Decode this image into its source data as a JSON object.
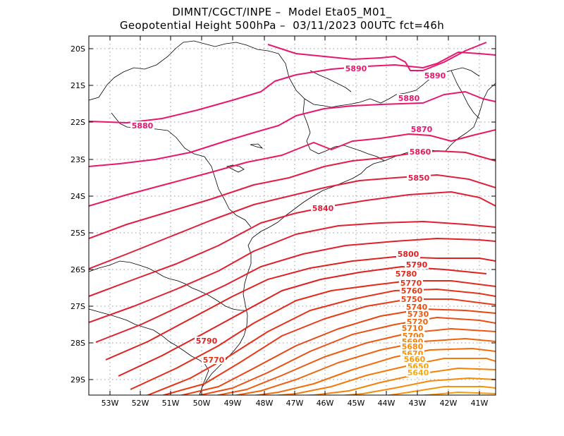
{
  "title": {
    "line1": "DIMNT/CGCT/INPE –  Model Eta05_M01_",
    "line2": "Geopotential Height 500hPa –  03/11/2023 00UTC fct=46h"
  },
  "axes": {
    "lat_labels": [
      "20S",
      "21S",
      "22S",
      "23S",
      "24S",
      "25S",
      "26S",
      "27S",
      "28S",
      "29S"
    ],
    "lon_labels": [
      "53W",
      "52W",
      "51W",
      "50W",
      "49W",
      "48W",
      "47W",
      "46W",
      "45W",
      "44W",
      "43W",
      "42W",
      "41W"
    ]
  },
  "contours": [
    {
      "value": 5890,
      "color": "#e8166e",
      "label": "5890"
    },
    {
      "value": 5880,
      "color": "#e8166e",
      "label": "5880"
    },
    {
      "value": 5870,
      "color": "#e8166e",
      "label": "5870"
    },
    {
      "value": 5860,
      "color": "#e81a58",
      "label": "5860"
    },
    {
      "value": 5850,
      "color": "#e21c45",
      "label": "5850"
    },
    {
      "value": 5840,
      "color": "#e01f3b",
      "label": "5840"
    },
    {
      "value": 5830,
      "color": "#e01f35",
      "label": ""
    },
    {
      "value": 5820,
      "color": "#e01f30",
      "label": ""
    },
    {
      "value": 5810,
      "color": "#e0202a",
      "label": ""
    },
    {
      "value": 5800,
      "color": "#e02020",
      "label": "5800"
    },
    {
      "value": 5790,
      "color": "#e02020",
      "label": "5790"
    },
    {
      "value": 5780,
      "color": "#e42a1a",
      "label": "5780"
    },
    {
      "value": 5770,
      "color": "#e63218",
      "label": "5770"
    },
    {
      "value": 5760,
      "color": "#e83a16",
      "label": "5760"
    },
    {
      "value": 5750,
      "color": "#ea4414",
      "label": "5750"
    },
    {
      "value": 5740,
      "color": "#ec4e12",
      "label": "5740"
    },
    {
      "value": 5730,
      "color": "#ee5810",
      "label": "5730"
    },
    {
      "value": 5720,
      "color": "#f0620e",
      "label": "5720"
    },
    {
      "value": 5710,
      "color": "#f26c0c",
      "label": "5710"
    },
    {
      "value": 5700,
      "color": "#f4780a",
      "label": "5700"
    },
    {
      "value": 5690,
      "color": "#f5800a",
      "label": "5690"
    },
    {
      "value": 5680,
      "color": "#f68a0a",
      "label": "5680"
    },
    {
      "value": 5670,
      "color": "#f7920a",
      "label": "5670"
    },
    {
      "value": 5660,
      "color": "#f89a0a",
      "label": "5660"
    },
    {
      "value": 5650,
      "color": "#f8a20a",
      "label": "5650"
    },
    {
      "value": 5640,
      "color": "#f8aa0a",
      "label": "5640"
    }
  ],
  "extra_labels": [
    {
      "value": 5890,
      "label": "5890"
    },
    {
      "value": 5890,
      "label": "5890"
    },
    {
      "value": 5880,
      "label": "5880"
    },
    {
      "value": 5790,
      "label": "5790"
    },
    {
      "value": 5770,
      "label": "5770"
    }
  ]
}
